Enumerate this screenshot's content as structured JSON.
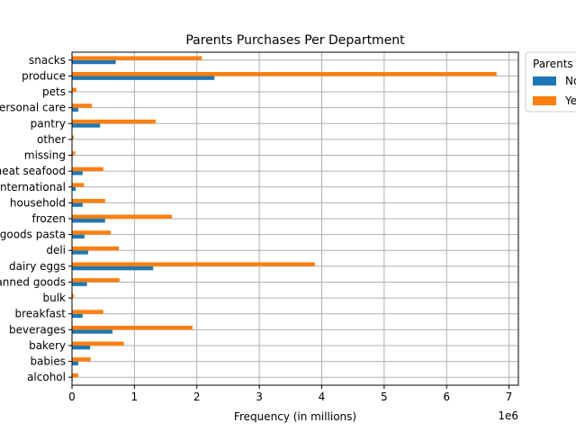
{
  "chart_data": {
    "type": "bar",
    "orientation": "horizontal",
    "title": "Parents Purchases Per Department",
    "xlabel": "Frequency (in millions)",
    "ylabel": "",
    "x_offset_text": "1e6",
    "xlim": [
      0,
      7150000
    ],
    "x_ticks": [
      0,
      1,
      2,
      3,
      4,
      5,
      6,
      7
    ],
    "grid": true,
    "legend": {
      "title": "Parents",
      "placement": "outside top-right",
      "entries": [
        "No",
        "Yes"
      ]
    },
    "colors": {
      "No": "#1f77b4",
      "Yes": "#ff7f0e"
    },
    "categories": [
      "alcohol",
      "babies",
      "bakery",
      "beverages",
      "breakfast",
      "bulk",
      "canned goods",
      "dairy eggs",
      "deli",
      "dry goods pasta",
      "frozen",
      "household",
      "international",
      "meat seafood",
      "missing",
      "other",
      "pantry",
      "personal care",
      "pets",
      "produce",
      "snacks"
    ],
    "series": [
      {
        "name": "No",
        "values": [
          10000,
          100000,
          290000,
          650000,
          170000,
          5000,
          240000,
          1300000,
          260000,
          200000,
          530000,
          170000,
          60000,
          170000,
          10000,
          5000,
          450000,
          100000,
          10000,
          2280000,
          700000
        ]
      },
      {
        "name": "Yes",
        "values": [
          100000,
          300000,
          830000,
          1930000,
          500000,
          30000,
          760000,
          3890000,
          750000,
          620000,
          1600000,
          530000,
          190000,
          500000,
          50000,
          30000,
          1340000,
          320000,
          70000,
          6800000,
          2080000
        ]
      }
    ]
  }
}
